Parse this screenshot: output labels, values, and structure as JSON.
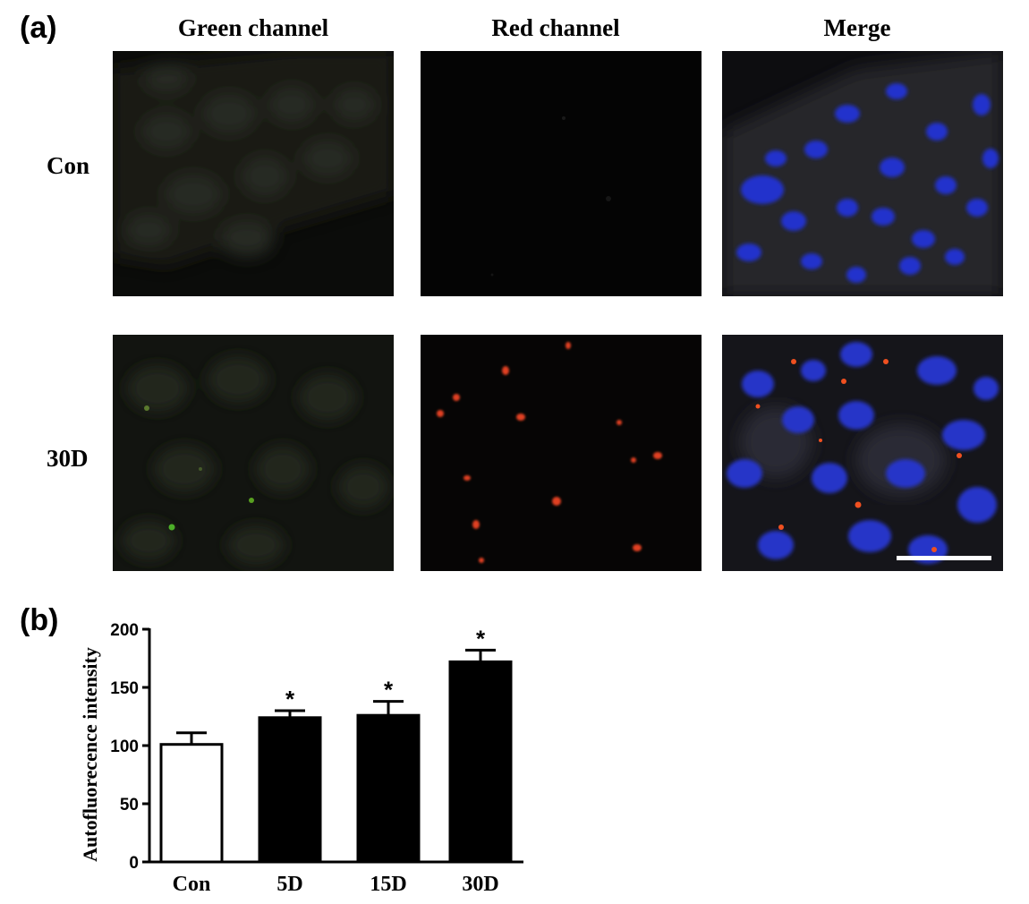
{
  "panel_a": {
    "letter": "(a)",
    "columns": [
      "Green channel",
      "Red channel",
      "Merge"
    ],
    "rows": [
      "Con",
      "30D"
    ]
  },
  "panel_b": {
    "letter": "(b)"
  },
  "chart_data": {
    "type": "bar",
    "categories": [
      "Con",
      "5D",
      "15D",
      "30D"
    ],
    "values": [
      101,
      124,
      126,
      172
    ],
    "errors": [
      10,
      6,
      12,
      10
    ],
    "significance": [
      "",
      "*",
      "*",
      "*"
    ],
    "bar_colors": [
      "#ffffff",
      "#000000",
      "#000000",
      "#000000"
    ],
    "ylabel": "Autofluorecence intensity",
    "xlabel": "",
    "ylim": [
      0,
      200
    ],
    "yticks": [
      0,
      50,
      100,
      150,
      200
    ],
    "grid": false
  }
}
